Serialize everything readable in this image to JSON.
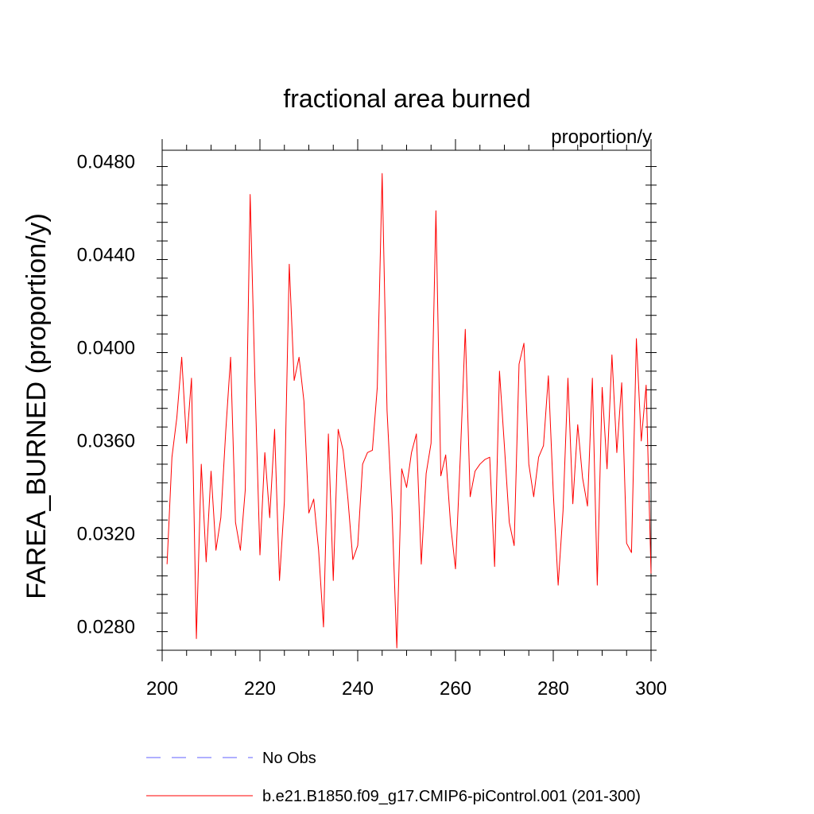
{
  "chart_data": {
    "type": "line",
    "title": "fractional area burned",
    "units_label": "proportion/y",
    "xlabel": "",
    "ylabel": "FAREA_BURNED  (proportion/y)",
    "xlim": [
      200,
      300
    ],
    "ylim": [
      0.027,
      0.0485
    ],
    "x_ticks": [
      200,
      220,
      240,
      260,
      280,
      300
    ],
    "y_ticks": [
      0.028,
      0.032,
      0.036,
      0.04,
      0.044,
      0.048
    ],
    "y_tick_labels": [
      "0.0280",
      "0.0320",
      "0.0360",
      "0.0400",
      "0.0440",
      "0.0480"
    ],
    "colors": {
      "main": "#ff0000",
      "obs": "#8080ff",
      "axis": "#000000"
    },
    "legend_position": "bottom",
    "legend": [
      {
        "label": "No Obs",
        "style": "dashed",
        "color": "#8080ff"
      },
      {
        "label": "b.e21.B1850.f09_g17.CMIP6-piControl.001 (201-300)",
        "style": "solid",
        "color": "#ff0000"
      }
    ],
    "series": [
      {
        "name": "b.e21.B1850.f09_g17.CMIP6-piControl.001 (201-300)",
        "x": [
          201,
          202,
          203,
          204,
          205,
          206,
          207,
          208,
          209,
          210,
          211,
          212,
          213,
          214,
          215,
          216,
          217,
          218,
          219,
          220,
          221,
          222,
          223,
          224,
          225,
          226,
          227,
          228,
          229,
          230,
          231,
          232,
          233,
          234,
          235,
          236,
          237,
          238,
          239,
          240,
          241,
          242,
          243,
          244,
          245,
          246,
          247,
          248,
          249,
          250,
          251,
          252,
          253,
          254,
          255,
          256,
          257,
          258,
          259,
          260,
          261,
          262,
          263,
          264,
          265,
          266,
          267,
          268,
          269,
          270,
          271,
          272,
          273,
          274,
          275,
          276,
          277,
          278,
          279,
          280,
          281,
          282,
          283,
          284,
          285,
          286,
          287,
          288,
          289,
          290,
          291,
          292,
          293,
          294,
          295,
          296,
          297,
          298,
          299,
          300
        ],
        "values": [
          0.0307,
          0.0353,
          0.037,
          0.0396,
          0.0359,
          0.0387,
          0.0275,
          0.035,
          0.0308,
          0.0347,
          0.0313,
          0.0327,
          0.0364,
          0.0396,
          0.0325,
          0.0313,
          0.0339,
          0.0466,
          0.0384,
          0.0311,
          0.0355,
          0.0327,
          0.0365,
          0.03,
          0.0334,
          0.0436,
          0.0386,
          0.0396,
          0.0377,
          0.0329,
          0.0335,
          0.0313,
          0.028,
          0.0363,
          0.03,
          0.0365,
          0.0356,
          0.0335,
          0.0309,
          0.0315,
          0.035,
          0.0355,
          0.0356,
          0.0383,
          0.0475,
          0.0373,
          0.0331,
          0.0271,
          0.0348,
          0.034,
          0.0355,
          0.0363,
          0.0307,
          0.0346,
          0.0359,
          0.0459,
          0.0345,
          0.0354,
          0.0324,
          0.0305,
          0.0354,
          0.0408,
          0.0336,
          0.0347,
          0.035,
          0.0352,
          0.0353,
          0.0306,
          0.039,
          0.0358,
          0.0325,
          0.0315,
          0.0393,
          0.0402,
          0.035,
          0.0336,
          0.0353,
          0.0358,
          0.0388,
          0.0338,
          0.0298,
          0.033,
          0.0387,
          0.0333,
          0.0367,
          0.0344,
          0.0332,
          0.0387,
          0.0298,
          0.0383,
          0.0348,
          0.0397,
          0.0355,
          0.0385,
          0.0316,
          0.0312,
          0.0404,
          0.036,
          0.0384,
          0.0303
        ]
      }
    ]
  }
}
